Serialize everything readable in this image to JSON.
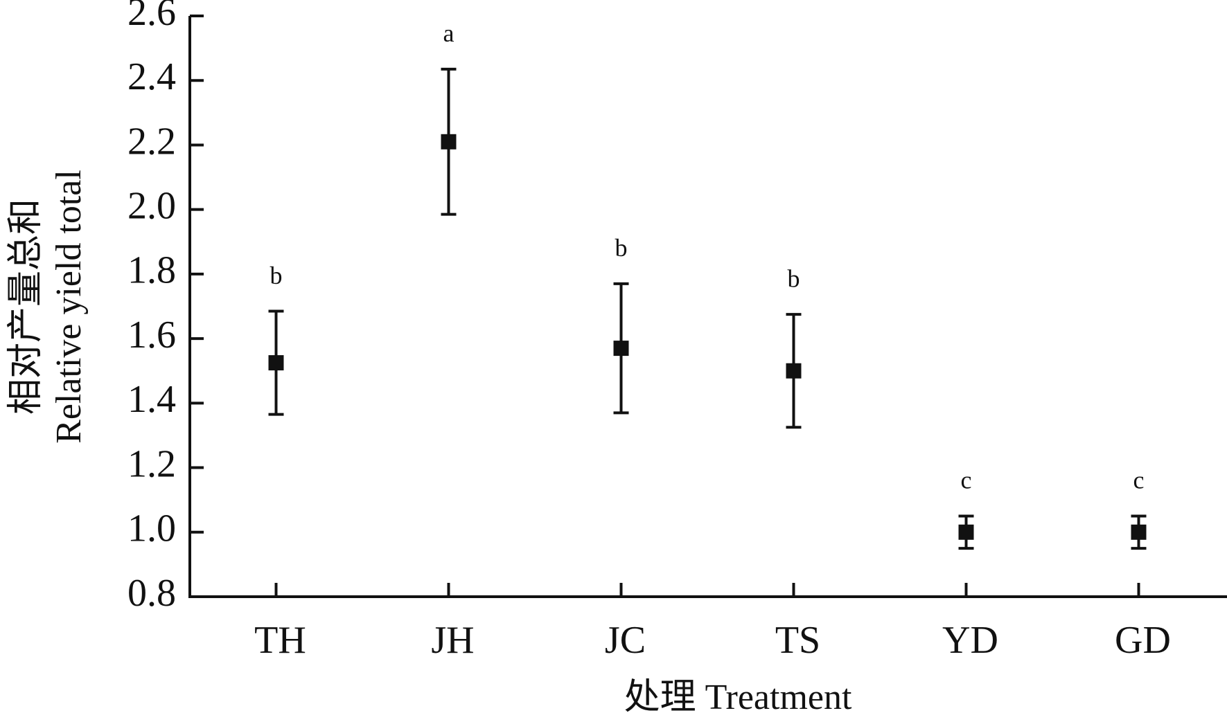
{
  "chart_data": {
    "type": "errorbar",
    "xlabel": "处理 Treatment",
    "ylabel": [
      "相对产量总和",
      "Relative yield total"
    ],
    "categories": [
      "TH",
      "JH",
      "JC",
      "TS",
      "YD",
      "GD"
    ],
    "values": [
      1.525,
      2.21,
      1.57,
      1.5,
      1.0,
      1.0
    ],
    "errors": [
      0.16,
      0.225,
      0.2,
      0.175,
      0.05,
      0.05
    ],
    "annotations": [
      "b",
      "a",
      "b",
      "b",
      "c",
      "c"
    ],
    "color": "#111111",
    "ylim": [
      0.8,
      2.6
    ],
    "yticks": [
      {
        "value": 0.8,
        "label": "0.8"
      },
      {
        "value": 1.0,
        "label": "1.0"
      },
      {
        "value": 1.2,
        "label": "1.2"
      },
      {
        "value": 1.4,
        "label": "1.4"
      },
      {
        "value": 1.6,
        "label": "1.6"
      },
      {
        "value": 1.8,
        "label": "1.8"
      },
      {
        "value": 2.0,
        "label": "2.0"
      },
      {
        "value": 2.2,
        "label": "2.2"
      },
      {
        "value": 2.4,
        "label": "2.4"
      },
      {
        "value": 2.6,
        "label": "2.6"
      }
    ]
  }
}
